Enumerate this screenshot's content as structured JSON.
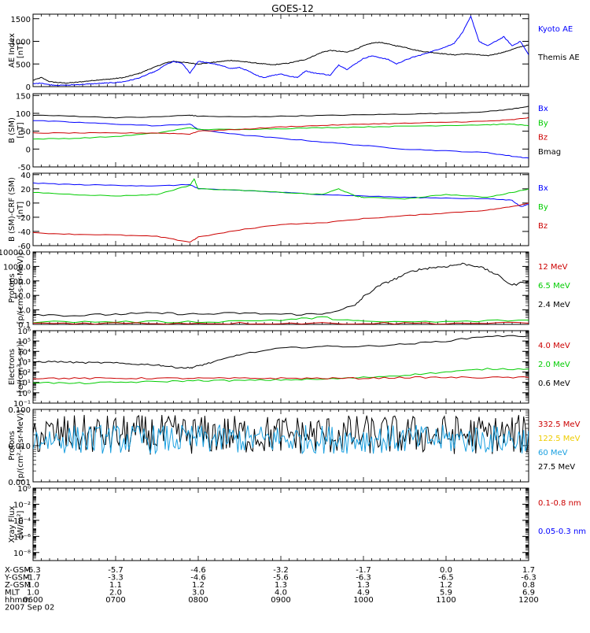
{
  "title": "GOES-12",
  "chart_data": [
    {
      "type": "line",
      "ylabel": [
        "AE Index",
        "[nT]"
      ],
      "ylim": [
        0,
        1600
      ],
      "yticks": [
        0,
        500,
        1000,
        1500
      ],
      "yticklabels": [
        "0",
        "500",
        "1000",
        "1500"
      ],
      "legend": [
        {
          "label": "Kyoto AE",
          "color": "#0000ff"
        },
        {
          "label": "Themis AE",
          "color": "#000000"
        }
      ],
      "series": [
        {
          "name": "Themis AE",
          "color": "#000000",
          "x": [
            6.0,
            6.1,
            6.2,
            6.3,
            6.4,
            6.5,
            6.6,
            6.7,
            6.8,
            6.9,
            7.0,
            7.1,
            7.2,
            7.3,
            7.4,
            7.5,
            7.6,
            7.7,
            7.8,
            7.9,
            8.0,
            8.1,
            8.2,
            8.3,
            8.4,
            8.5,
            8.6,
            8.7,
            8.8,
            8.9,
            9.0,
            9.1,
            9.2,
            9.3,
            9.4,
            9.5,
            9.6,
            9.7,
            9.8,
            9.9,
            10.0,
            10.1,
            10.2,
            10.3,
            10.4,
            10.5,
            10.6,
            10.7,
            10.8,
            10.9,
            11.0,
            11.1,
            11.2,
            11.3,
            11.4,
            11.5,
            11.6,
            11.7,
            11.8,
            11.9,
            12.0
          ],
          "y": [
            140,
            200,
            110,
            90,
            80,
            90,
            110,
            130,
            150,
            160,
            180,
            200,
            250,
            300,
            380,
            450,
            520,
            560,
            540,
            520,
            500,
            520,
            540,
            560,
            580,
            560,
            540,
            520,
            500,
            480,
            500,
            520,
            560,
            600,
            680,
            760,
            800,
            780,
            760,
            820,
            900,
            960,
            980,
            940,
            900,
            870,
            820,
            780,
            760,
            740,
            720,
            700,
            720,
            720,
            700,
            680,
            720,
            760,
            820,
            880,
            920
          ]
        },
        {
          "name": "Kyoto AE",
          "color": "#0000ff",
          "x": [
            6.0,
            6.1,
            6.2,
            6.3,
            6.4,
            6.5,
            6.6,
            6.7,
            6.8,
            6.9,
            7.0,
            7.1,
            7.2,
            7.3,
            7.4,
            7.5,
            7.6,
            7.7,
            7.8,
            7.9,
            8.0,
            8.1,
            8.2,
            8.3,
            8.4,
            8.5,
            8.6,
            8.7,
            8.8,
            8.9,
            9.0,
            9.1,
            9.2,
            9.3,
            9.4,
            9.5,
            9.6,
            9.7,
            9.8,
            9.9,
            10.0,
            10.1,
            10.2,
            10.3,
            10.4,
            10.5,
            10.6,
            10.7,
            10.8,
            10.9,
            11.0,
            11.1,
            11.2,
            11.3,
            11.4,
            11.5,
            11.6,
            11.7,
            11.8,
            11.9,
            12.0
          ],
          "y": [
            60,
            80,
            40,
            30,
            30,
            40,
            50,
            60,
            70,
            80,
            90,
            110,
            150,
            200,
            280,
            350,
            480,
            550,
            520,
            300,
            560,
            530,
            500,
            450,
            400,
            420,
            350,
            250,
            200,
            250,
            280,
            230,
            200,
            350,
            300,
            280,
            250,
            480,
            380,
            500,
            620,
            680,
            640,
            600,
            500,
            580,
            650,
            700,
            760,
            820,
            880,
            960,
            1200,
            1550,
            1000,
            900,
            1000,
            1100,
            900,
            1000,
            700
          ]
        }
      ]
    },
    {
      "type": "line",
      "ylabel": [
        "B (SM)",
        "[nT]"
      ],
      "ylim": [
        -50,
        155
      ],
      "yticks": [
        -50,
        0,
        50,
        100,
        150
      ],
      "yticklabels": [
        "-50",
        "0",
        "50",
        "100",
        "150"
      ],
      "legend": [
        {
          "label": "Bx",
          "color": "#0000ff"
        },
        {
          "label": "By",
          "color": "#00cc00"
        },
        {
          "label": "Bz",
          "color": "#cc0000"
        },
        {
          "label": "Bmag",
          "color": "#000000"
        }
      ],
      "series": [
        {
          "name": "Bmag",
          "color": "#000000",
          "x": [
            6.0,
            6.5,
            7.0,
            7.5,
            7.9,
            8.0,
            8.5,
            9.0,
            9.5,
            10.0,
            10.5,
            11.0,
            11.5,
            11.8,
            12.0
          ],
          "y": [
            95,
            92,
            88,
            90,
            95,
            92,
            90,
            92,
            94,
            96,
            98,
            100,
            105,
            112,
            120
          ]
        },
        {
          "name": "Bx",
          "color": "#0000ff",
          "x": [
            6.0,
            6.5,
            7.0,
            7.5,
            7.9,
            8.0,
            8.5,
            9.0,
            9.5,
            10.0,
            10.5,
            11.0,
            11.5,
            11.8,
            12.0
          ],
          "y": [
            80,
            75,
            70,
            65,
            70,
            55,
            40,
            30,
            20,
            10,
            0,
            -5,
            -10,
            -20,
            -25
          ]
        },
        {
          "name": "By",
          "color": "#00cc00",
          "x": [
            6.0,
            6.5,
            7.0,
            7.5,
            7.9,
            8.0,
            8.5,
            9.0,
            9.5,
            10.0,
            10.5,
            11.0,
            11.5,
            11.8,
            12.0
          ],
          "y": [
            28,
            30,
            35,
            45,
            60,
            55,
            55,
            57,
            60,
            62,
            64,
            66,
            68,
            70,
            65
          ]
        },
        {
          "name": "Bz",
          "color": "#cc0000",
          "x": [
            6.0,
            6.5,
            7.0,
            7.5,
            7.9,
            8.0,
            8.5,
            9.0,
            9.5,
            10.0,
            10.5,
            11.0,
            11.5,
            11.8,
            12.0
          ],
          "y": [
            45,
            45,
            45,
            45,
            42,
            50,
            55,
            62,
            66,
            70,
            72,
            75,
            78,
            82,
            88
          ]
        }
      ]
    },
    {
      "type": "line",
      "ylabel": [
        "B (SM)-CRF (SM)",
        "[nT]"
      ],
      "ylim": [
        -60,
        42
      ],
      "yticks": [
        -60,
        -40,
        -20,
        0,
        20,
        40
      ],
      "yticklabels": [
        "-60",
        "-40",
        "-20",
        "0",
        "20",
        "40"
      ],
      "legend": [
        {
          "label": "Bx",
          "color": "#0000ff"
        },
        {
          "label": "By",
          "color": "#00cc00"
        },
        {
          "label": "Bz",
          "color": "#cc0000"
        }
      ],
      "series": [
        {
          "name": "Bx",
          "color": "#0000ff",
          "x": [
            6.0,
            6.5,
            7.0,
            7.5,
            7.9,
            8.0,
            8.5,
            9.0,
            9.5,
            10.0,
            10.5,
            11.0,
            11.5,
            11.8,
            11.9,
            12.0
          ],
          "y": [
            28,
            26,
            25,
            24,
            26,
            20,
            18,
            15,
            12,
            10,
            8,
            7,
            6,
            4,
            -5,
            -2
          ]
        },
        {
          "name": "By",
          "color": "#00cc00",
          "x": [
            6.0,
            6.5,
            7.0,
            7.5,
            7.9,
            7.95,
            8.0,
            8.5,
            9.0,
            9.5,
            9.7,
            9.9,
            10.0,
            10.5,
            11.0,
            11.5,
            11.8,
            12.0
          ],
          "y": [
            15,
            12,
            10,
            12,
            25,
            34,
            20,
            18,
            15,
            12,
            20,
            10,
            8,
            6,
            12,
            8,
            15,
            20
          ]
        },
        {
          "name": "Bz",
          "color": "#cc0000",
          "x": [
            6.0,
            6.5,
            7.0,
            7.5,
            7.9,
            8.0,
            8.5,
            9.0,
            9.5,
            10.0,
            10.5,
            11.0,
            11.5,
            11.8,
            12.0
          ],
          "y": [
            -42,
            -44,
            -45,
            -47,
            -55,
            -48,
            -38,
            -30,
            -28,
            -22,
            -18,
            -14,
            -10,
            -5,
            0
          ]
        }
      ]
    },
    {
      "type": "line",
      "yscale": "log",
      "ylabel": [
        "Protons",
        "[p/(cm²-s-sr-MeV)]"
      ],
      "ylim": [
        0.1,
        10000
      ],
      "yticks": [
        0.1,
        1,
        10,
        100,
        1000,
        10000
      ],
      "yticklabels": [
        "0.1",
        "1.0",
        "10.0",
        "100.0",
        "1000.0",
        "10000.0"
      ],
      "legend": [
        {
          "label": "12 MeV",
          "color": "#cc0000"
        },
        {
          "label": "6.5 MeV",
          "color": "#00cc00"
        },
        {
          "label": "2.4 MeV",
          "color": "#000000"
        }
      ],
      "series": [
        {
          "name": "2.4 MeV",
          "color": "#000000",
          "x": [
            6.0,
            6.5,
            7.0,
            7.5,
            8.0,
            8.5,
            9.0,
            9.5,
            9.9,
            10.0,
            10.2,
            10.4,
            10.6,
            10.8,
            11.0,
            11.2,
            11.4,
            11.6,
            11.8,
            12.0
          ],
          "y": [
            0.5,
            0.4,
            0.5,
            0.6,
            0.5,
            0.6,
            0.5,
            0.5,
            2,
            8,
            50,
            150,
            500,
            800,
            1000,
            1500,
            1000,
            300,
            50,
            100
          ]
        },
        {
          "name": "6.5 MeV",
          "color": "#00cc00",
          "x": [
            6.0,
            7.0,
            8.0,
            9.0,
            9.5,
            10.0,
            11.0,
            12.0
          ],
          "y": [
            0.15,
            0.15,
            0.15,
            0.2,
            0.3,
            0.15,
            0.15,
            0.2
          ]
        },
        {
          "name": "12 MeV",
          "color": "#cc0000",
          "x": [
            6.0,
            7.0,
            8.0,
            9.0,
            10.0,
            11.0,
            12.0
          ],
          "y": [
            0.12,
            0.12,
            0.12,
            0.12,
            0.12,
            0.12,
            0.12
          ]
        }
      ]
    },
    {
      "type": "line",
      "yscale": "log",
      "ylabel": [
        "Electrons",
        "[e/(cm²-s-sr)]"
      ],
      "ylim": [
        0.1,
        1000000
      ],
      "yticks": [
        0.1,
        1,
        10,
        100,
        1000,
        10000,
        100000,
        1000000
      ],
      "yticklabels": [
        "10⁻¹",
        "10⁰",
        "10¹",
        "10²",
        "10³",
        "10⁴",
        "10⁵",
        "10⁶"
      ],
      "legend": [
        {
          "label": "4.0 MeV",
          "color": "#cc0000"
        },
        {
          "label": "2.0 MeV",
          "color": "#00cc00"
        },
        {
          "label": "0.6 MeV",
          "color": "#000000"
        }
      ],
      "series": [
        {
          "name": "0.6 MeV",
          "color": "#000000",
          "x": [
            6.0,
            6.3,
            6.6,
            6.9,
            7.2,
            7.5,
            7.7,
            7.9,
            8.0,
            8.2,
            8.5,
            9.0,
            9.5,
            10.0,
            10.5,
            11.0,
            11.5,
            12.0
          ],
          "y": [
            1000,
            1000,
            800,
            800,
            600,
            500,
            300,
            250,
            400,
            1000,
            5000,
            20000,
            30000,
            30000,
            50000,
            100000,
            300000,
            300000
          ]
        },
        {
          "name": "2.0 MeV",
          "color": "#00cc00",
          "x": [
            6.0,
            6.5,
            7.0,
            7.5,
            8.0,
            8.5,
            9.0,
            9.5,
            10.0,
            10.5,
            11.0,
            11.5,
            12.0
          ],
          "y": [
            10,
            8,
            10,
            12,
            15,
            15,
            18,
            20,
            30,
            50,
            100,
            200,
            200
          ]
        },
        {
          "name": "4.0 MeV",
          "color": "#cc0000",
          "x": [
            6.0,
            6.5,
            7.0,
            7.5,
            8.0,
            8.5,
            9.0,
            9.5,
            10.0,
            10.5,
            11.0,
            11.5,
            12.0
          ],
          "y": [
            25,
            25,
            25,
            25,
            25,
            25,
            25,
            25,
            25,
            30,
            30,
            30,
            30
          ]
        }
      ]
    },
    {
      "type": "line",
      "yscale": "log",
      "ylabel": [
        "Protons",
        "[p/(cm²-s-sr-MeV)]"
      ],
      "ylim": [
        0.001,
        0.1
      ],
      "yticks": [
        0.001,
        0.01,
        0.1
      ],
      "yticklabels": [
        "0.001",
        "0.010",
        "0.100"
      ],
      "legend": [
        {
          "label": "332.5 MeV",
          "color": "#cc0000"
        },
        {
          "label": "122.5 MeV",
          "color": "#eecc00"
        },
        {
          "label": "60 MeV",
          "color": "#1aa0e0"
        },
        {
          "label": "27.5 MeV",
          "color": "#000000"
        }
      ],
      "series": [
        {
          "name": "27.5 MeV",
          "color": "#000000",
          "x": [
            6.0,
            12.0
          ],
          "y": [
            0.02,
            0.02
          ],
          "noise": 0.55
        },
        {
          "name": "60 MeV",
          "color": "#1aa0e0",
          "x": [
            6.0,
            12.0
          ],
          "y": [
            0.015,
            0.015
          ],
          "noise": 0.4
        }
      ]
    },
    {
      "type": "line",
      "yscale": "log",
      "ylabel": [
        "Xray Flux",
        "[W/m²]"
      ],
      "ylim": [
        1e-09,
        1
      ],
      "yticks": [
        1e-08,
        1e-06,
        0.0001,
        0.01,
        1
      ],
      "yticklabels": [
        "10⁻⁸",
        "10⁻⁶",
        "10⁻⁴",
        "10⁻²",
        "10⁰"
      ],
      "legend": [
        {
          "label": "0.1-0.8 nm",
          "color": "#cc0000"
        },
        {
          "label": "0.05-0.3 nm",
          "color": "#0000ff"
        }
      ],
      "series": []
    }
  ],
  "xaxis": {
    "xlim": [
      6.0,
      12.0
    ],
    "ticks": [
      6.0,
      7.0,
      8.0,
      9.0,
      10.0,
      11.0,
      12.0
    ],
    "rows": [
      {
        "label": "X-GSM",
        "values": [
          "-6.3",
          "-5.7",
          "-4.6",
          "-3.2",
          "-1.7",
          "0.0",
          "1.7"
        ]
      },
      {
        "label": "Y-GSM",
        "values": [
          "-1.7",
          "-3.3",
          "-4.6",
          "-5.6",
          "-6.3",
          "-6.5",
          "-6.3"
        ]
      },
      {
        "label": "Z-GSM",
        "values": [
          "1.0",
          "1.1",
          "1.2",
          "1.3",
          "1.3",
          "1.2",
          "0.8"
        ]
      },
      {
        "label": "MLT",
        "values": [
          "1.0",
          "2.0",
          "3.0",
          "4.0",
          "4.9",
          "5.9",
          "6.9"
        ]
      },
      {
        "label": "hhmm",
        "values": [
          "0600",
          "0700",
          "0800",
          "0900",
          "1000",
          "1100",
          "1200"
        ]
      }
    ],
    "date": "2007 Sep 02"
  }
}
